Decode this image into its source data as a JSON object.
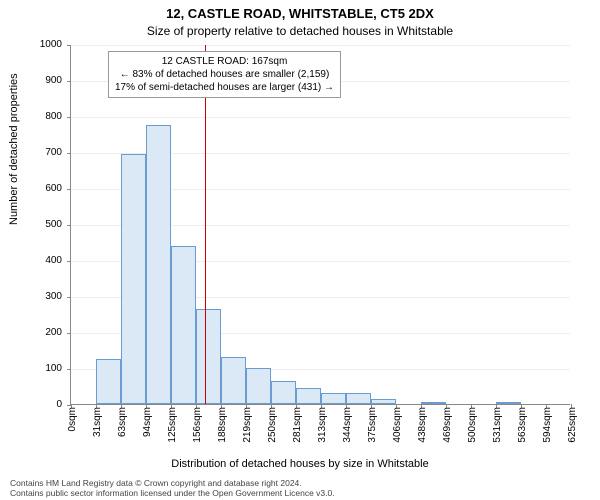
{
  "title_line1": "12, CASTLE ROAD, WHITSTABLE, CT5 2DX",
  "title_line2": "Size of property relative to detached houses in Whitstable",
  "ylabel": "Number of detached properties",
  "xlabel": "Distribution of detached houses by size in Whitstable",
  "chart": {
    "type": "histogram",
    "ylim": [
      0,
      1000
    ],
    "ytick_step": 100,
    "x_ticks": [
      "0sqm",
      "31sqm",
      "63sqm",
      "94sqm",
      "125sqm",
      "156sqm",
      "188sqm",
      "219sqm",
      "250sqm",
      "281sqm",
      "313sqm",
      "344sqm",
      "375sqm",
      "406sqm",
      "438sqm",
      "469sqm",
      "500sqm",
      "531sqm",
      "563sqm",
      "594sqm",
      "625sqm"
    ],
    "values": [
      0,
      125,
      695,
      775,
      440,
      265,
      130,
      100,
      65,
      45,
      30,
      30,
      15,
      0,
      5,
      0,
      0,
      5,
      0,
      0
    ],
    "bar_fill": "#dbe9f6",
    "bar_stroke": "#6a9bd1",
    "grid_color": "#eeeeee",
    "axis_color": "#888888",
    "background": "#ffffff",
    "bar_width_ratio": 1.0,
    "refline_x": 167,
    "x_max": 625,
    "refline_color": "#cc0000"
  },
  "annotation": {
    "line1": "12 CASTLE ROAD: 167sqm",
    "line2": "← 83% of detached houses are smaller (2,159)",
    "line3": "17% of semi-detached houses are larger (431) →"
  },
  "footer_line1": "Contains HM Land Registry data © Crown copyright and database right 2024.",
  "footer_line2": "Contains public sector information licensed under the Open Government Licence v3.0."
}
